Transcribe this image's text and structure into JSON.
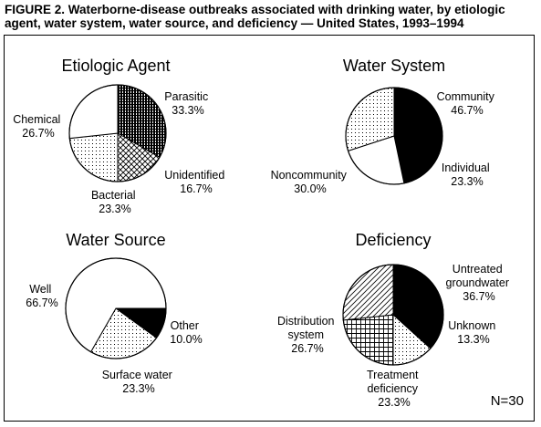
{
  "figure": {
    "title_line1": "FIGURE 2. Waterborne-disease outbreaks associated with drinking water, by etiologic",
    "title_line2": "agent, water system, water source, and deficiency — United States, 1993–1994",
    "n_label": "N=30"
  },
  "chart_data": [
    {
      "type": "pie",
      "title": "Etiologic Agent",
      "slices": [
        {
          "name": "Parasitic",
          "value": 33.3,
          "display": "33.3%",
          "fill": "stripes-dense"
        },
        {
          "name": "Unidentified",
          "value": 16.7,
          "display": "16.7%",
          "fill": "crosshatch"
        },
        {
          "name": "Bacterial",
          "value": 23.3,
          "display": "23.3%",
          "fill": "dots"
        },
        {
          "name": "Chemical",
          "value": 26.7,
          "display": "26.7%",
          "fill": "white"
        }
      ]
    },
    {
      "type": "pie",
      "title": "Water System",
      "slices": [
        {
          "name": "Community",
          "value": 46.7,
          "display": "46.7%",
          "fill": "black"
        },
        {
          "name": "Individual",
          "value": 23.3,
          "display": "23.3%",
          "fill": "white"
        },
        {
          "name": "Noncommunity",
          "value": 30.0,
          "display": "30.0%",
          "fill": "dots"
        }
      ]
    },
    {
      "type": "pie",
      "title": "Water Source",
      "slices": [
        {
          "name": "Other",
          "value": 10.0,
          "display": "10.0%",
          "fill": "black"
        },
        {
          "name": "Surface water",
          "value": 23.3,
          "display": "23.3%",
          "fill": "dots"
        },
        {
          "name": "Well",
          "value": 66.7,
          "display": "66.7%",
          "fill": "white"
        }
      ]
    },
    {
      "type": "pie",
      "title": "Deficiency",
      "slices": [
        {
          "name": "Untreated groundwater",
          "value": 36.7,
          "display": "36.7%",
          "fill": "black"
        },
        {
          "name": "Unknown",
          "value": 13.3,
          "display": "13.3%",
          "fill": "dots"
        },
        {
          "name": "Treatment deficiency",
          "value": 23.3,
          "display": "23.3%",
          "fill": "grid"
        },
        {
          "name": "Distribution system",
          "value": 26.7,
          "display": "26.7%",
          "fill": "diagonal"
        }
      ]
    }
  ],
  "pie_labels": [
    [
      {
        "lines": [
          "Parasitic"
        ],
        "value": "33.3%"
      },
      {
        "lines": [
          "Unidentified"
        ],
        "value": "16.7%"
      },
      {
        "lines": [
          "Bacterial"
        ],
        "value": "23.3%"
      },
      {
        "lines": [
          "Chemical"
        ],
        "value": "26.7%"
      }
    ],
    [
      {
        "lines": [
          "Community"
        ],
        "value": "46.7%"
      },
      {
        "lines": [
          "Individual"
        ],
        "value": "23.3%"
      },
      {
        "lines": [
          "Noncommunity"
        ],
        "value": "30.0%"
      }
    ],
    [
      {
        "lines": [
          "Other"
        ],
        "value": "10.0%"
      },
      {
        "lines": [
          "Surface water"
        ],
        "value": "23.3%"
      },
      {
        "lines": [
          "Well"
        ],
        "value": "66.7%"
      }
    ],
    [
      {
        "lines": [
          "Untreated",
          "groundwater"
        ],
        "value": "36.7%"
      },
      {
        "lines": [
          "Unknown"
        ],
        "value": "13.3%"
      },
      {
        "lines": [
          "Treatment",
          "deficiency"
        ],
        "value": "23.3%"
      },
      {
        "lines": [
          "Distribution",
          "system"
        ],
        "value": "26.7%"
      }
    ]
  ]
}
